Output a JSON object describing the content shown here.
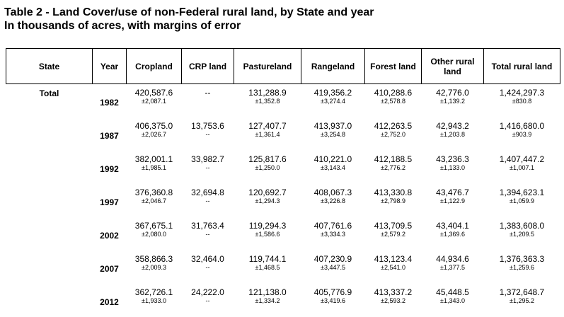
{
  "title": {
    "line1": "Table 2 - Land Cover/use of non-Federal rural land, by State and year",
    "line2": "In thousands of acres, with margins of error"
  },
  "headers": [
    "State",
    "Year",
    "Cropland",
    "CRP land",
    "Pastureland",
    "Rangeland",
    "Forest land",
    "Other rural land",
    "Total rural land"
  ],
  "state": "Total",
  "rows": [
    {
      "year": "1982",
      "cells": [
        [
          "420,587.6",
          "±2,087.1"
        ],
        [
          "--",
          ""
        ],
        [
          "131,288.9",
          "±1,352.8"
        ],
        [
          "419,356.2",
          "±3,274.4"
        ],
        [
          "410,288.6",
          "±2,578.8"
        ],
        [
          "42,776.0",
          "±1,139.2"
        ],
        [
          "1,424,297.3",
          "±830.8"
        ]
      ]
    },
    {
      "year": "1987",
      "cells": [
        [
          "406,375.0",
          "±2,026.7"
        ],
        [
          "13,753.6",
          "--"
        ],
        [
          "127,407.7",
          "±1,361.4"
        ],
        [
          "413,937.0",
          "±3,254.8"
        ],
        [
          "412,263.5",
          "±2,752.0"
        ],
        [
          "42,943.2",
          "±1,203.8"
        ],
        [
          "1,416,680.0",
          "±903.9"
        ]
      ]
    },
    {
      "year": "1992",
      "cells": [
        [
          "382,001.1",
          "±1,985.1"
        ],
        [
          "33,982.7",
          "--"
        ],
        [
          "125,817.6",
          "±1,250.0"
        ],
        [
          "410,221.0",
          "±3,143.4"
        ],
        [
          "412,188.5",
          "±2,776.2"
        ],
        [
          "43,236.3",
          "±1,133.0"
        ],
        [
          "1,407,447.2",
          "±1,007.1"
        ]
      ]
    },
    {
      "year": "1997",
      "cells": [
        [
          "376,360.8",
          "±2,046.7"
        ],
        [
          "32,694.8",
          "--"
        ],
        [
          "120,692.7",
          "±1,294.3"
        ],
        [
          "408,067.3",
          "±3,226.8"
        ],
        [
          "413,330.8",
          "±2,798.9"
        ],
        [
          "43,476.7",
          "±1,122.9"
        ],
        [
          "1,394,623.1",
          "±1,059.9"
        ]
      ]
    },
    {
      "year": "2002",
      "cells": [
        [
          "367,675.1",
          "±2,080.0"
        ],
        [
          "31,763.4",
          "--"
        ],
        [
          "119,294.3",
          "±1,586.6"
        ],
        [
          "407,761.6",
          "±3,334.3"
        ],
        [
          "413,709.5",
          "±2,579.2"
        ],
        [
          "43,404.1",
          "±1,369.6"
        ],
        [
          "1,383,608.0",
          "±1,209.5"
        ]
      ]
    },
    {
      "year": "2007",
      "cells": [
        [
          "358,866.3",
          "±2,009.3"
        ],
        [
          "32,464.0",
          "--"
        ],
        [
          "119,744.1",
          "±1,468.5"
        ],
        [
          "407,230.9",
          "±3,447.5"
        ],
        [
          "413,123.4",
          "±2,541.0"
        ],
        [
          "44,934.6",
          "±1,377.5"
        ],
        [
          "1,376,363.3",
          "±1,259.6"
        ]
      ]
    },
    {
      "year": "2012",
      "cells": [
        [
          "362,726.1",
          "±1,933.0"
        ],
        [
          "24,222.0",
          "--"
        ],
        [
          "121,138.0",
          "±1,334.2"
        ],
        [
          "405,776.9",
          "±3,419.6"
        ],
        [
          "413,337.2",
          "±2,593.2"
        ],
        [
          "45,448.5",
          "±1,343.0"
        ],
        [
          "1,372,648.7",
          "±1,295.2"
        ]
      ]
    }
  ]
}
